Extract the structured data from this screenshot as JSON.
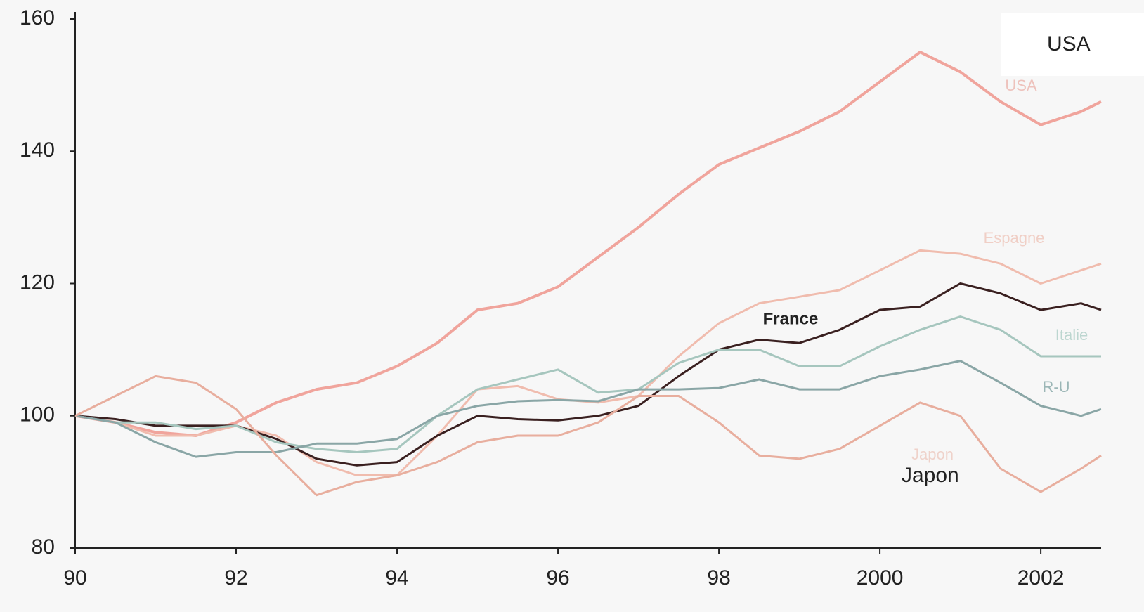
{
  "chart_data": {
    "type": "line",
    "x": [
      1990,
      1990.5,
      1991,
      1991.5,
      1992,
      1992.5,
      1993,
      1993.5,
      1994,
      1994.5,
      1995,
      1995.5,
      1996,
      1996.5,
      1997,
      1997.5,
      1998,
      1998.5,
      1999,
      1999.5,
      2000,
      2000.5,
      2001,
      2001.5,
      2002,
      2002.5,
      2002.75
    ],
    "series": [
      {
        "name": "USA",
        "color": "#f0a49c",
        "values": [
          100,
          99,
          97.5,
          97,
          99,
          102,
          104,
          105,
          107.5,
          111,
          116,
          117,
          119.5,
          124,
          128.5,
          133.5,
          138,
          140.5,
          143,
          146,
          150.5,
          155,
          152,
          147.5,
          144,
          146,
          147.5
        ]
      },
      {
        "name": "Espagne",
        "color": "#f0bcae",
        "values": [
          100,
          99,
          97,
          97,
          98.5,
          97,
          93,
          91,
          91,
          97,
          104,
          104.5,
          102.5,
          102,
          103,
          109,
          114,
          117,
          118,
          119,
          122,
          125,
          124.5,
          123,
          120,
          122,
          123
        ]
      },
      {
        "name": "France",
        "color": "#3a2020",
        "values": [
          100,
          99.5,
          98.5,
          98.5,
          98.5,
          96.5,
          93.5,
          92.5,
          93,
          97,
          100,
          99.5,
          99.3,
          100,
          101.5,
          106,
          110,
          111.5,
          111,
          113,
          116,
          116.5,
          120,
          118.5,
          116,
          117,
          116
        ]
      },
      {
        "name": "Italie",
        "color": "#a6c6be",
        "values": [
          100,
          99,
          99,
          98,
          98.5,
          96,
          95,
          94.5,
          95,
          100,
          104,
          105.5,
          107,
          103.5,
          104,
          108,
          110,
          110,
          107.5,
          107.5,
          110.5,
          113,
          115,
          113,
          109,
          109,
          109
        ]
      },
      {
        "name": "R-U",
        "color": "#8aa6a6",
        "values": [
          100,
          99,
          96,
          93.8,
          94.5,
          94.5,
          95.8,
          95.8,
          96.5,
          100,
          101.5,
          102.2,
          102.4,
          102.2,
          104,
          104,
          104.2,
          105.5,
          104,
          104,
          106,
          107,
          108.3,
          105,
          101.5,
          100,
          101
        ]
      },
      {
        "name": "Japon",
        "color": "#e8ae9e",
        "values": [
          100,
          103,
          106,
          105,
          101,
          94,
          88,
          90,
          91,
          93,
          96,
          97,
          97,
          99,
          103,
          103,
          99,
          94,
          93.5,
          95,
          98.5,
          102,
          100,
          92,
          88.5,
          92,
          94
        ]
      }
    ],
    "xlim": [
      1990,
      2002.75
    ],
    "xticks": [
      {
        "value": 1990,
        "label": "90"
      },
      {
        "value": 1992,
        "label": "92"
      },
      {
        "value": 1994,
        "label": "94"
      },
      {
        "value": 1996,
        "label": "96"
      },
      {
        "value": 1998,
        "label": "98"
      },
      2000,
      2002
    ],
    "ylim": [
      80,
      160
    ],
    "yticks": [
      80,
      100,
      120,
      140,
      160
    ],
    "annotations": [
      "USA",
      "Japon"
    ]
  }
}
